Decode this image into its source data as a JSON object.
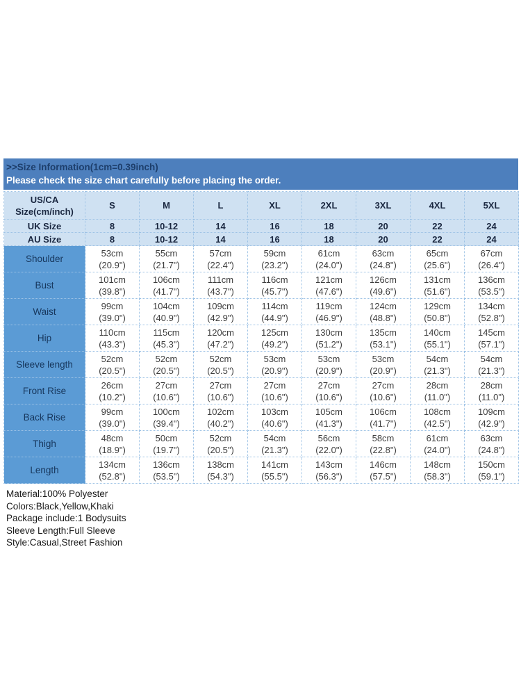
{
  "banner": {
    "title": ">>Size Information(1cm=0.39inch)",
    "subtitle": "Please check the size chart carefully before placing the order."
  },
  "size_chart": {
    "corner": {
      "line1": "US/CA",
      "line2": "Size(cm/inch)"
    },
    "sizes": [
      "S",
      "M",
      "L",
      "XL",
      "2XL",
      "3XL",
      "4XL",
      "5XL"
    ],
    "conversion_rows": [
      {
        "label": "UK Size",
        "values": [
          "8",
          "10-12",
          "14",
          "16",
          "18",
          "20",
          "22",
          "24"
        ]
      },
      {
        "label": "AU Size",
        "values": [
          "8",
          "10-12",
          "14",
          "16",
          "18",
          "20",
          "22",
          "24"
        ]
      }
    ],
    "measurement_rows": [
      {
        "label": "Shoulder",
        "cm": [
          "53cm",
          "55cm",
          "57cm",
          "59cm",
          "61cm",
          "63cm",
          "65cm",
          "67cm"
        ],
        "inch": [
          "(20.9\")",
          "(21.7\")",
          "(22.4\")",
          "(23.2\")",
          "(24.0\")",
          "(24.8\")",
          "(25.6\")",
          "(26.4\")"
        ]
      },
      {
        "label": "Bust",
        "cm": [
          "101cm",
          "106cm",
          "111cm",
          "116cm",
          "121cm",
          "126cm",
          "131cm",
          "136cm"
        ],
        "inch": [
          "(39.8\")",
          "(41.7\")",
          "(43.7\")",
          "(45.7\")",
          "(47.6\")",
          "(49.6\")",
          "(51.6\")",
          "(53.5\")"
        ]
      },
      {
        "label": "Waist",
        "cm": [
          "99cm",
          "104cm",
          "109cm",
          "114cm",
          "119cm",
          "124cm",
          "129cm",
          "134cm"
        ],
        "inch": [
          "(39.0\")",
          "(40.9\")",
          "(42.9\")",
          "(44.9\")",
          "(46.9\")",
          "(48.8\")",
          "(50.8\")",
          "(52.8\")"
        ]
      },
      {
        "label": "Hip",
        "cm": [
          "110cm",
          "115cm",
          "120cm",
          "125cm",
          "130cm",
          "135cm",
          "140cm",
          "145cm"
        ],
        "inch": [
          "(43.3\")",
          "(45.3\")",
          "(47.2\")",
          "(49.2\")",
          "(51.2\")",
          "(53.1\")",
          "(55.1\")",
          "(57.1\")"
        ]
      },
      {
        "label": "Sleeve length",
        "cm": [
          "52cm",
          "52cm",
          "52cm",
          "53cm",
          "53cm",
          "53cm",
          "54cm",
          "54cm"
        ],
        "inch": [
          "(20.5\")",
          "(20.5\")",
          "(20.5\")",
          "(20.9\")",
          "(20.9\")",
          "(20.9\")",
          "(21.3\")",
          "(21.3\")"
        ]
      },
      {
        "label": "Front Rise",
        "cm": [
          "26cm",
          "27cm",
          "27cm",
          "27cm",
          "27cm",
          "27cm",
          "28cm",
          "28cm"
        ],
        "inch": [
          "(10.2\")",
          "(10.6\")",
          "(10.6\")",
          "(10.6\")",
          "(10.6\")",
          "(10.6\")",
          "(11.0\")",
          "(11.0\")"
        ]
      },
      {
        "label": "Back Rise",
        "cm": [
          "99cm",
          "100cm",
          "102cm",
          "103cm",
          "105cm",
          "106cm",
          "108cm",
          "109cm"
        ],
        "inch": [
          "(39.0\")",
          "(39.4\")",
          "(40.2\")",
          "(40.6\")",
          "(41.3\")",
          "(41.7\")",
          "(42.5\")",
          "(42.9\")"
        ]
      },
      {
        "label": "Thigh",
        "cm": [
          "48cm",
          "50cm",
          "52cm",
          "54cm",
          "56cm",
          "58cm",
          "61cm",
          "63cm"
        ],
        "inch": [
          "(18.9\")",
          "(19.7\")",
          "(20.5\")",
          "(21.3\")",
          "(22.0\")",
          "(22.8\")",
          "(24.0\")",
          "(24.8\")"
        ]
      },
      {
        "label": "Length",
        "cm": [
          "134cm",
          "136cm",
          "138cm",
          "141cm",
          "143cm",
          "146cm",
          "148cm",
          "150cm"
        ],
        "inch": [
          "(52.8\")",
          "(53.5\")",
          "(54.3\")",
          "(55.5\")",
          "(56.3\")",
          "(57.5\")",
          "(58.3\")",
          "(59.1\")"
        ]
      }
    ]
  },
  "details": {
    "lines": [
      "Material:100% Polyester",
      "Colors:Black,Yellow,Khaki",
      "Package include:1 Bodysuits",
      "Sleeve Length:Full Sleeve",
      "Style:Casual,Street Fashion"
    ]
  },
  "colors": {
    "banner_bg": "#4d7fbd",
    "banner_title_text": "#1d3e6b",
    "banner_subtitle_text": "#ffffff",
    "header_bg": "#cfe1f2",
    "header_text": "#1a2740",
    "label_column_bg": "#5b9bd5",
    "label_text": "#17375d",
    "data_text": "#3d3d3d",
    "grid_border": "#9dc2e5"
  }
}
